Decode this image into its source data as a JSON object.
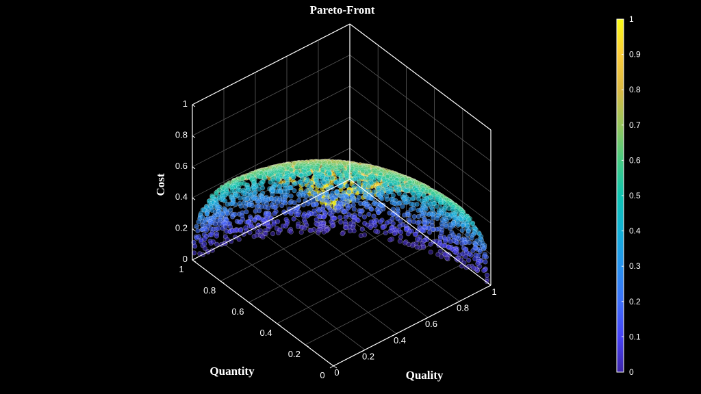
{
  "chart_data": {
    "type": "scatter",
    "title": "Pareto-Front",
    "xlabel": "Quality",
    "ylabel": "Quantity",
    "zlabel": "Cost",
    "xlim": [
      0,
      1
    ],
    "ylim": [
      0,
      1
    ],
    "zlim": [
      0,
      1
    ],
    "x_ticks": [
      "0",
      "0.2",
      "0.4",
      "0.6",
      "0.8",
      "1"
    ],
    "y_ticks": [
      "0",
      "0.2",
      "0.4",
      "0.6",
      "0.8",
      "1"
    ],
    "z_ticks": [
      "0",
      "0.2",
      "0.4",
      "0.6",
      "0.8",
      "1"
    ],
    "colorbar": {
      "colormap": "parula",
      "range": [
        0,
        1
      ],
      "ticks": [
        "0",
        "0.1",
        "0.2",
        "0.3",
        "0.4",
        "0.5",
        "0.6",
        "0.7",
        "0.8",
        "0.9",
        "1"
      ]
    },
    "color_variable": "Cost",
    "point_count": 2500,
    "surface": "x^2 + y^2 + z^2 = 1 (positive octant)",
    "grid": true,
    "background": "#000000",
    "axis_color": "#ffffff",
    "marker_opacity": 0.6
  }
}
